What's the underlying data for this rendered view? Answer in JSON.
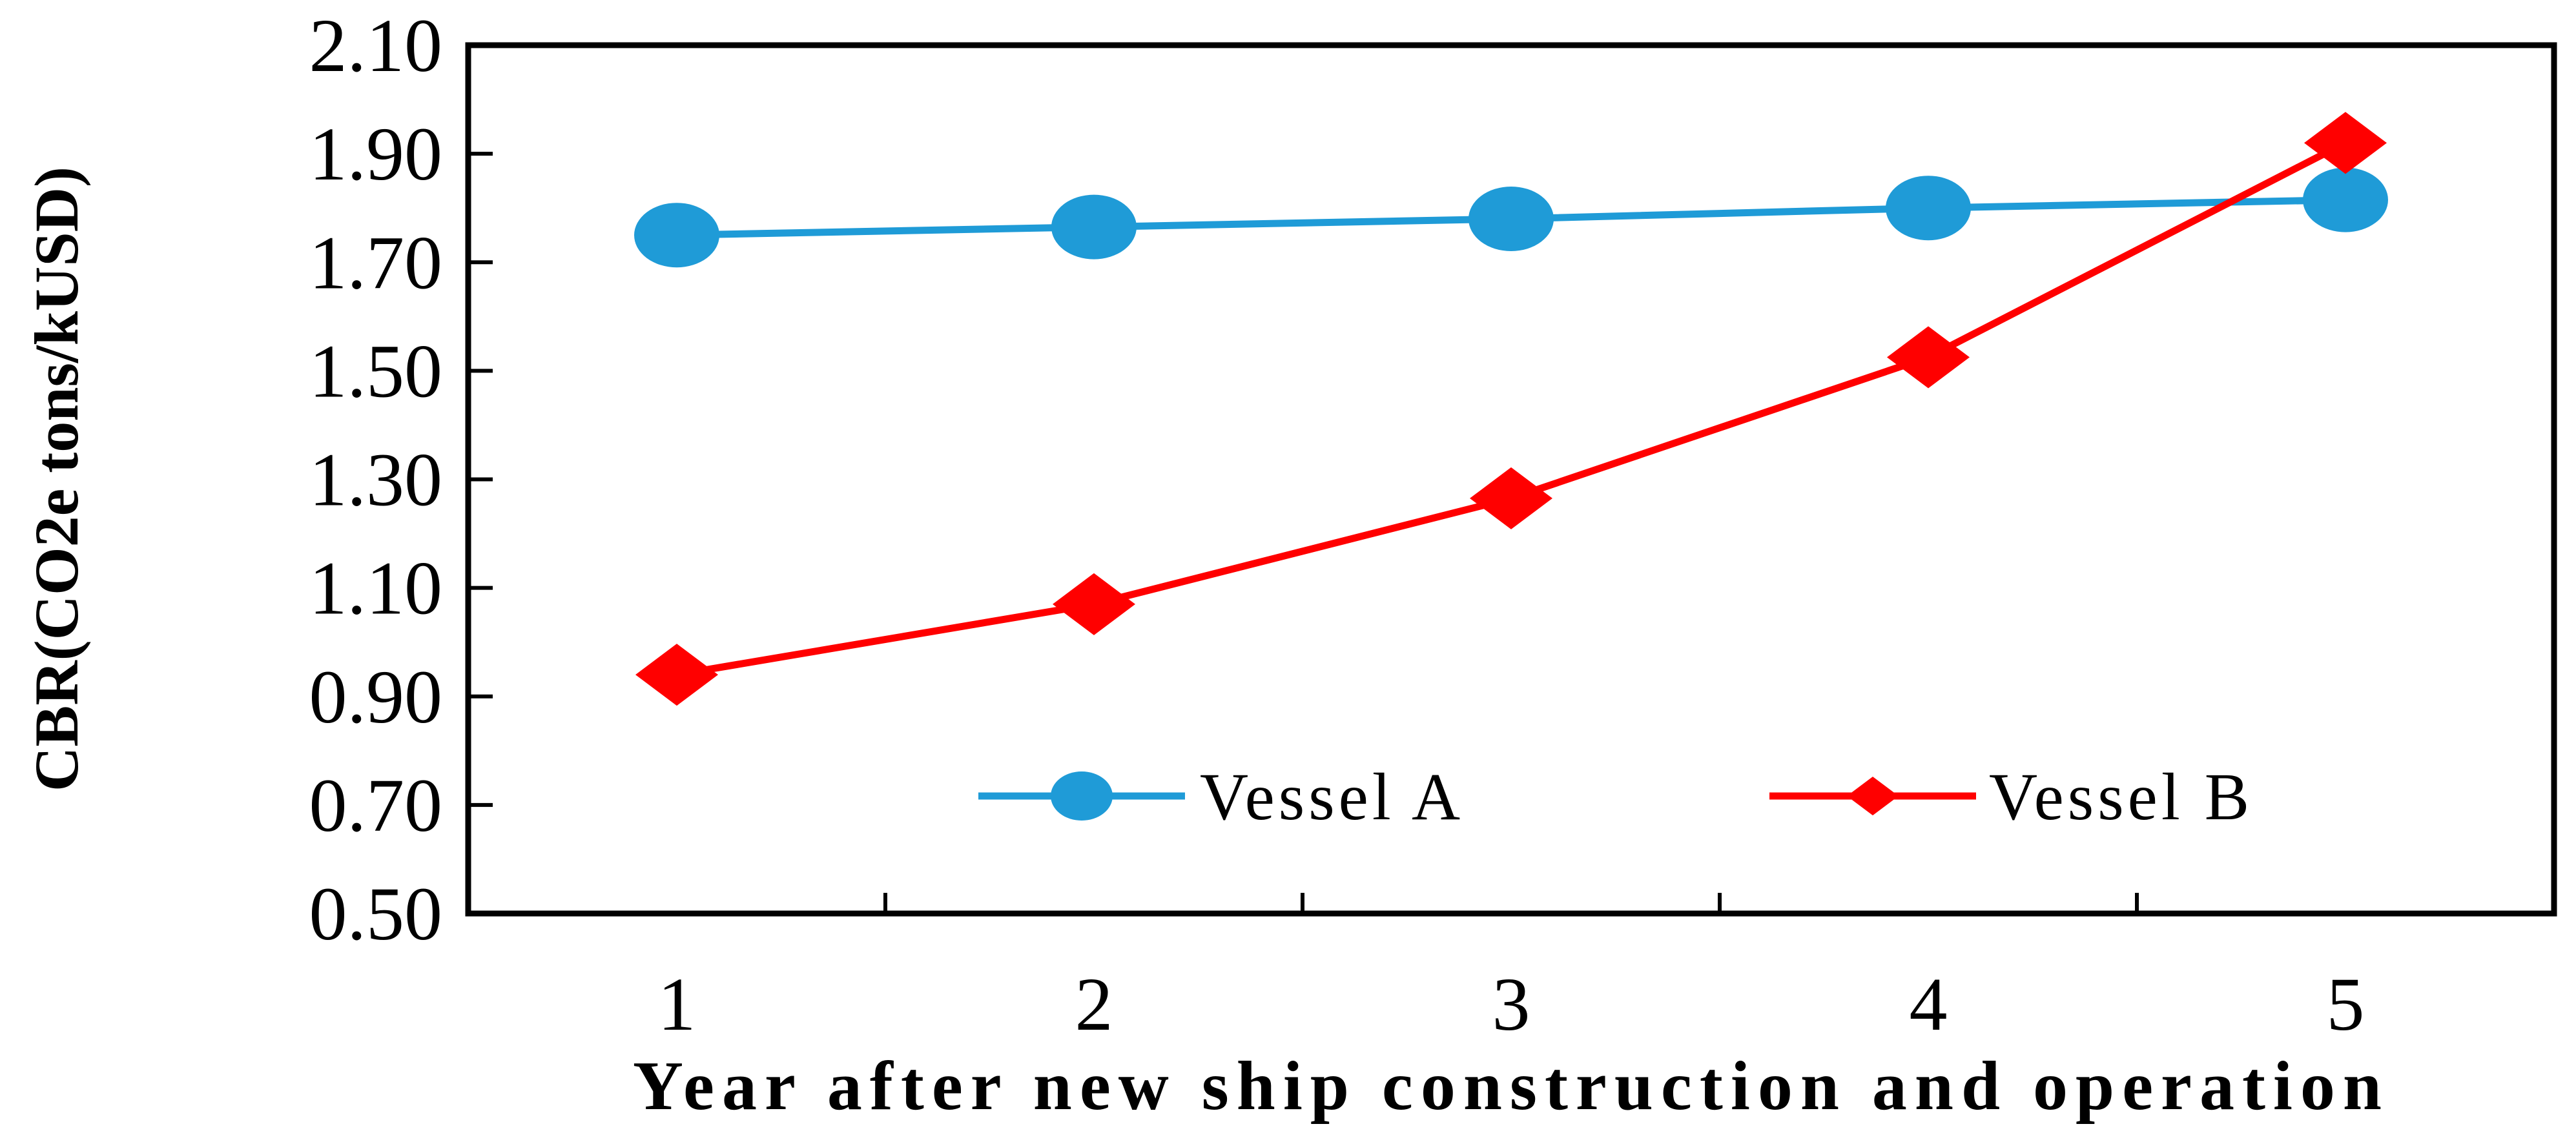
{
  "chart_data": {
    "type": "line",
    "xlabel": "Year after new ship construction and operation",
    "ylabel": "CBR(CO2e tons/kUSD)",
    "categories": [
      "1",
      "2",
      "3",
      "4",
      "5"
    ],
    "ylim": [
      0.5,
      2.1
    ],
    "yticks": [
      "0.50",
      "0.70",
      "0.90",
      "1.10",
      "1.30",
      "1.50",
      "1.70",
      "1.90",
      "2.10"
    ],
    "grid": false,
    "legend_position": "bottom-inside",
    "series": [
      {
        "name": "Vessel A",
        "values": [
          1.75,
          1.765,
          1.78,
          1.8,
          1.815
        ],
        "color": "#1f9bd7",
        "marker": "circle"
      },
      {
        "name": "Vessel B",
        "values": [
          0.94,
          1.07,
          1.265,
          1.525,
          1.92
        ],
        "color": "#ff0000",
        "marker": "diamond"
      }
    ]
  }
}
